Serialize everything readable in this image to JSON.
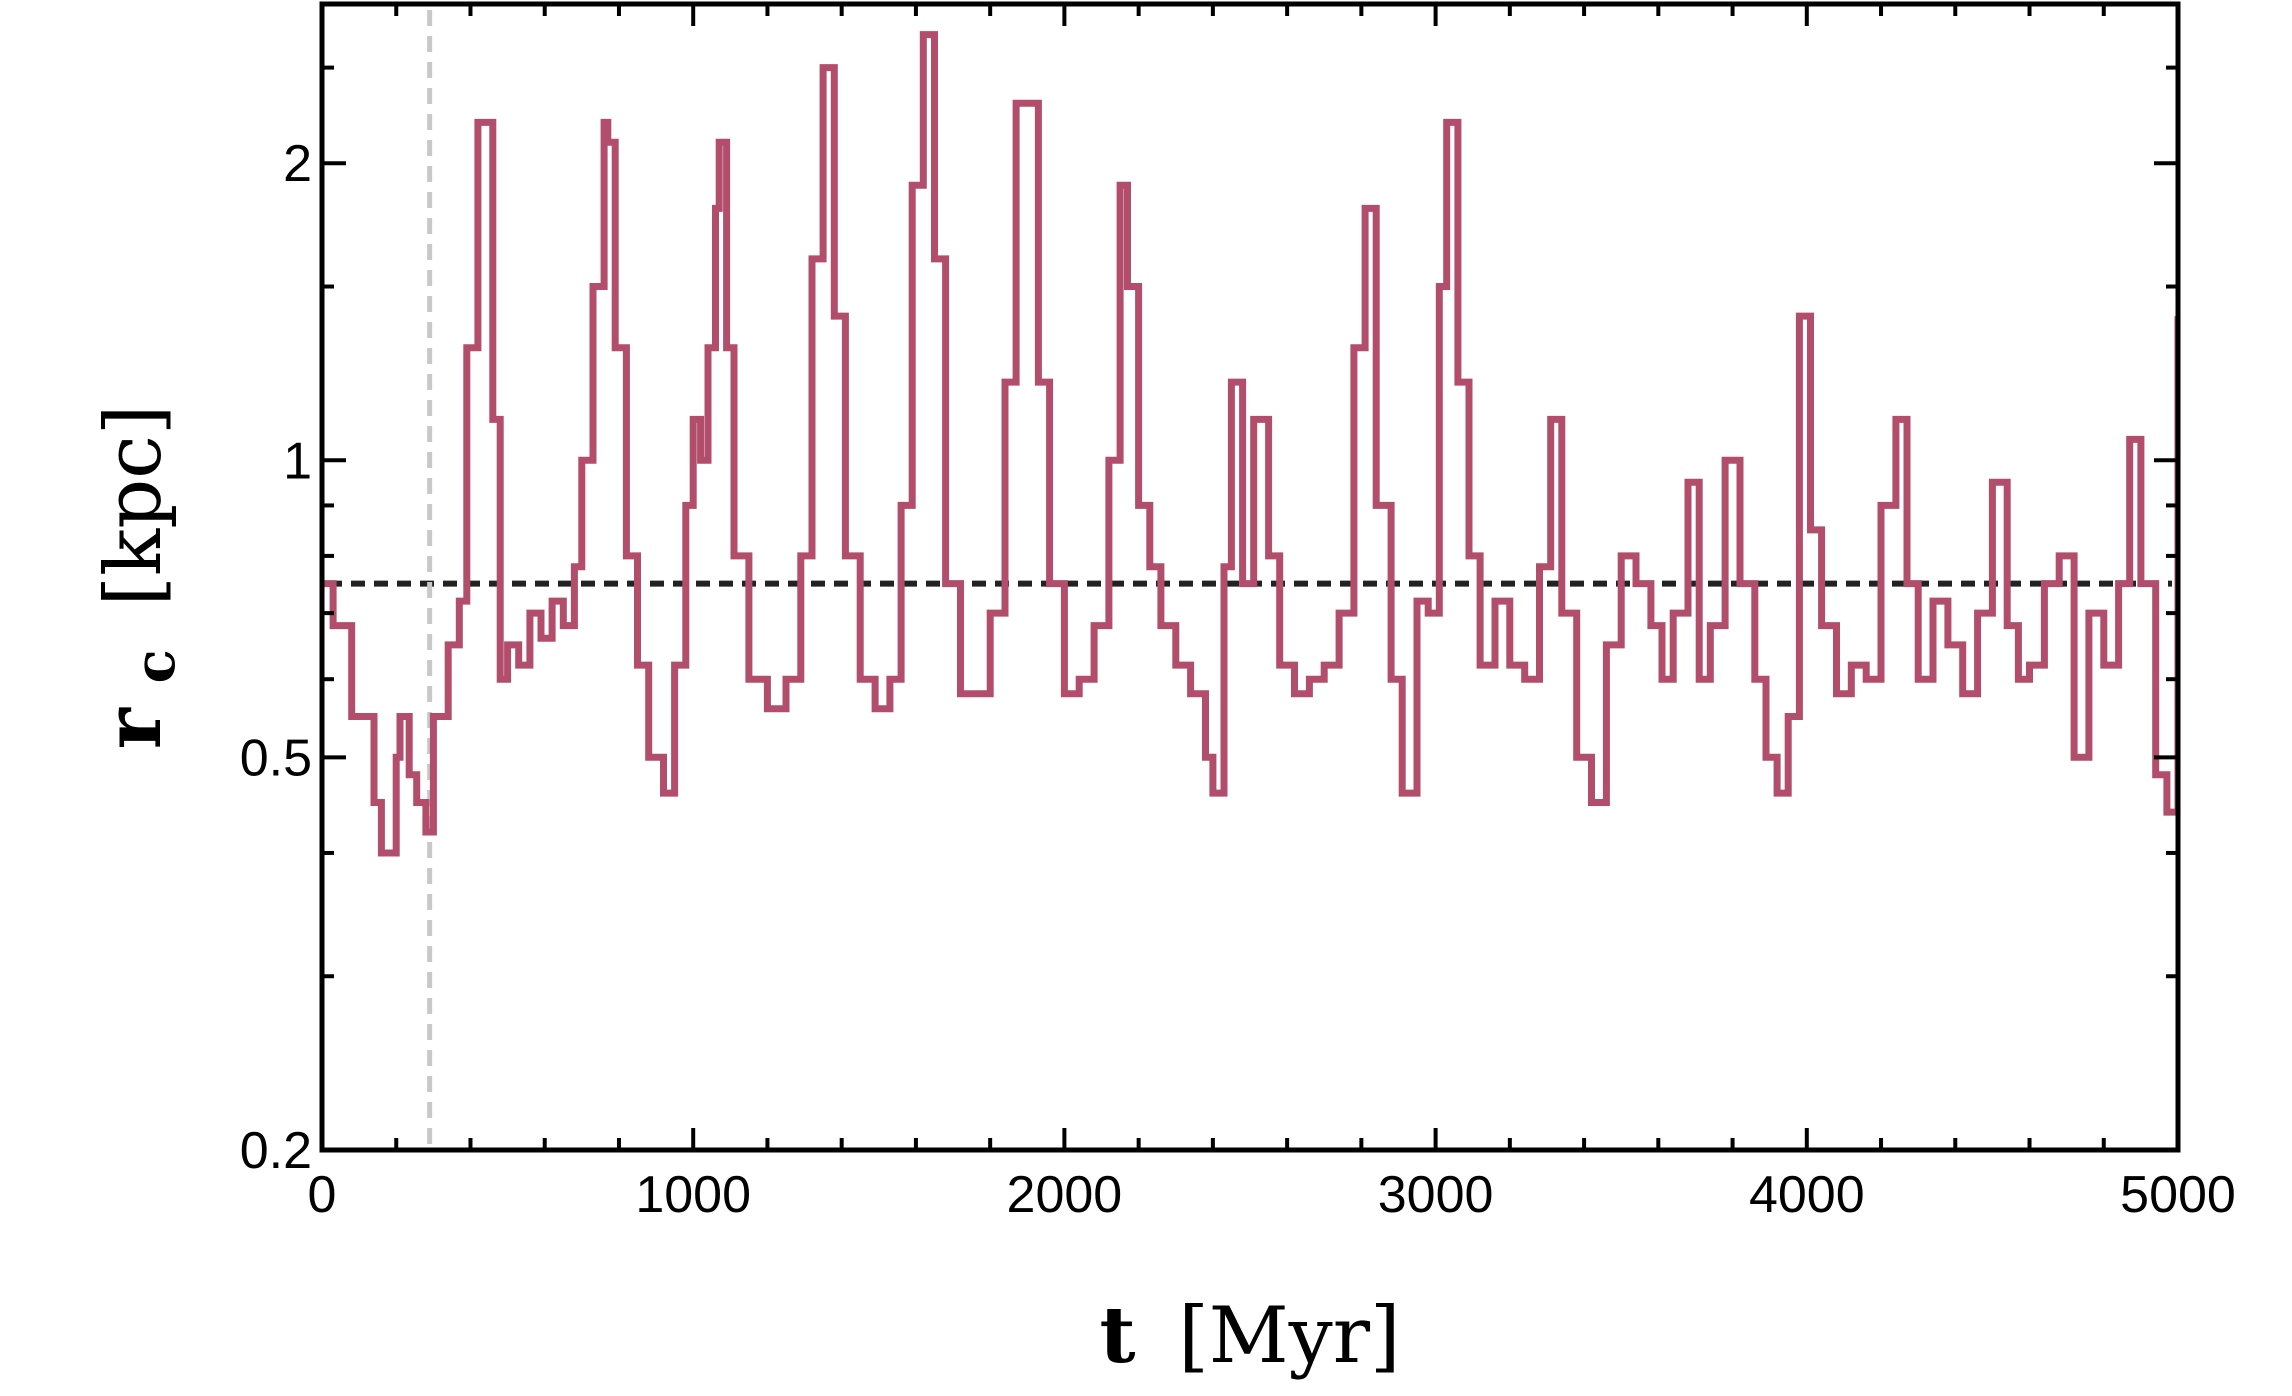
{
  "chart_data": {
    "type": "line",
    "xlabel": {
      "symbol": "t",
      "unit": "[Myr]"
    },
    "ylabel": {
      "symbol": "r",
      "subscript": "c",
      "unit": "[kpc]"
    },
    "xlim": [
      0,
      5000
    ],
    "ylim": [
      0.2,
      2.9
    ],
    "yscale": "log",
    "x_ticks": [
      0,
      1000,
      2000,
      3000,
      4000,
      5000
    ],
    "x_tick_labels": [
      "0",
      "1000",
      "2000",
      "3000",
      "4000",
      "5000"
    ],
    "y_ticks": [
      0.2,
      0.5,
      1,
      2
    ],
    "y_tick_labels": [
      "0.2",
      "0.5",
      "1",
      "2"
    ],
    "grid": false,
    "reference_lines": [
      {
        "orientation": "horizontal",
        "value": 0.75,
        "style": "dashed",
        "color": "#222222"
      },
      {
        "orientation": "vertical",
        "value": 290,
        "style": "dashed",
        "color": "#c8c8c8"
      }
    ],
    "series": [
      {
        "color": "#b24d6b",
        "x": [
          0,
          30,
          80,
          140,
          160,
          200,
          210,
          235,
          255,
          280,
          300,
          340,
          370,
          390,
          420,
          440,
          460,
          480,
          500,
          530,
          560,
          590,
          620,
          650,
          680,
          700,
          730,
          760,
          770,
          790,
          820,
          850,
          880,
          920,
          950,
          980,
          1000,
          1020,
          1040,
          1060,
          1070,
          1090,
          1110,
          1150,
          1200,
          1250,
          1290,
          1320,
          1350,
          1380,
          1410,
          1450,
          1490,
          1530,
          1560,
          1590,
          1620,
          1650,
          1680,
          1720,
          1760,
          1800,
          1840,
          1870,
          1900,
          1930,
          1960,
          2000,
          2040,
          2080,
          2120,
          2150,
          2170,
          2200,
          2230,
          2260,
          2300,
          2340,
          2380,
          2400,
          2430,
          2450,
          2480,
          2510,
          2550,
          2580,
          2620,
          2660,
          2700,
          2740,
          2780,
          2810,
          2840,
          2880,
          2910,
          2950,
          2980,
          3010,
          3030,
          3060,
          3090,
          3120,
          3160,
          3200,
          3240,
          3280,
          3310,
          3340,
          3380,
          3420,
          3460,
          3500,
          3540,
          3580,
          3610,
          3640,
          3680,
          3710,
          3740,
          3780,
          3820,
          3860,
          3890,
          3920,
          3950,
          3980,
          4010,
          4040,
          4080,
          4120,
          4160,
          4200,
          4240,
          4270,
          4300,
          4340,
          4380,
          4420,
          4460,
          4500,
          4540,
          4570,
          4600,
          4640,
          4680,
          4720,
          4760,
          4800,
          4840,
          4870,
          4900,
          4940,
          4970,
          5000
        ],
        "y": [
          0.75,
          0.68,
          0.55,
          0.45,
          0.4,
          0.5,
          0.55,
          0.48,
          0.45,
          0.42,
          0.55,
          0.65,
          0.72,
          1.3,
          2.2,
          2.2,
          1.1,
          0.6,
          0.65,
          0.62,
          0.7,
          0.66,
          0.72,
          0.68,
          0.78,
          1.0,
          1.5,
          2.2,
          2.1,
          1.3,
          0.8,
          0.62,
          0.5,
          0.46,
          0.62,
          0.9,
          1.1,
          1.0,
          1.3,
          1.8,
          2.1,
          1.3,
          0.8,
          0.6,
          0.56,
          0.6,
          0.8,
          1.6,
          2.5,
          1.4,
          0.8,
          0.6,
          0.56,
          0.6,
          0.9,
          1.9,
          2.7,
          1.6,
          0.75,
          0.58,
          0.58,
          0.7,
          1.2,
          2.3,
          2.3,
          1.2,
          0.75,
          0.58,
          0.6,
          0.68,
          1.0,
          1.9,
          1.5,
          0.9,
          0.78,
          0.68,
          0.62,
          0.58,
          0.5,
          0.46,
          0.78,
          1.2,
          0.75,
          1.1,
          0.8,
          0.62,
          0.58,
          0.6,
          0.62,
          0.7,
          1.3,
          1.8,
          0.9,
          0.6,
          0.46,
          0.72,
          0.7,
          1.5,
          2.2,
          1.2,
          0.8,
          0.62,
          0.72,
          0.62,
          0.6,
          0.78,
          1.1,
          0.7,
          0.5,
          0.45,
          0.65,
          0.8,
          0.75,
          0.68,
          0.6,
          0.7,
          0.95,
          0.6,
          0.68,
          1.0,
          0.75,
          0.6,
          0.5,
          0.46,
          0.55,
          1.4,
          0.85,
          0.68,
          0.58,
          0.62,
          0.6,
          0.9,
          1.1,
          0.75,
          0.6,
          0.72,
          0.65,
          0.58,
          0.7,
          0.95,
          0.68,
          0.6,
          0.62,
          0.75,
          0.8,
          0.5,
          0.7,
          0.62,
          0.75,
          1.05,
          0.75,
          0.48,
          0.44,
          1.4
        ]
      }
    ]
  }
}
